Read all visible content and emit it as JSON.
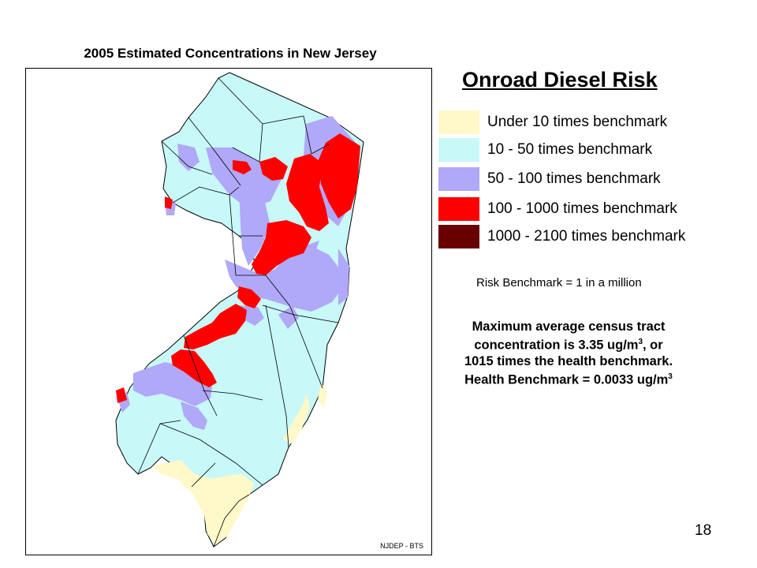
{
  "map": {
    "title": "2005 Estimated Concentrations in New Jersey",
    "credit": "NJDEP - BTS"
  },
  "legend": {
    "title": "Onroad Diesel Risk",
    "items": [
      {
        "label": "Under 10 times benchmark",
        "color": "#FFF8C8"
      },
      {
        "label": "10 - 50 times benchmark",
        "color": "#C8F8F8"
      },
      {
        "label": "50 - 100 times benchmark",
        "color": "#B0A8F8"
      },
      {
        "label": "100 - 1000 times benchmark",
        "color": "#FF0000"
      },
      {
        "label": "1000 - 2100 times benchmark",
        "color": "#680000"
      }
    ]
  },
  "benchmark_note": "Risk Benchmark = 1 in a million",
  "max_note": {
    "line1_prefix": "Maximum average census tract",
    "line2_prefix": "concentration is 3.35 ug/m",
    "line2_sup": "3",
    "line2_suffix": ", or",
    "line3": "1015 times the health benchmark.",
    "line4_prefix": "Health Benchmark = 0.0033 ug/m",
    "line4_sup": "3"
  },
  "page_number": "18"
}
